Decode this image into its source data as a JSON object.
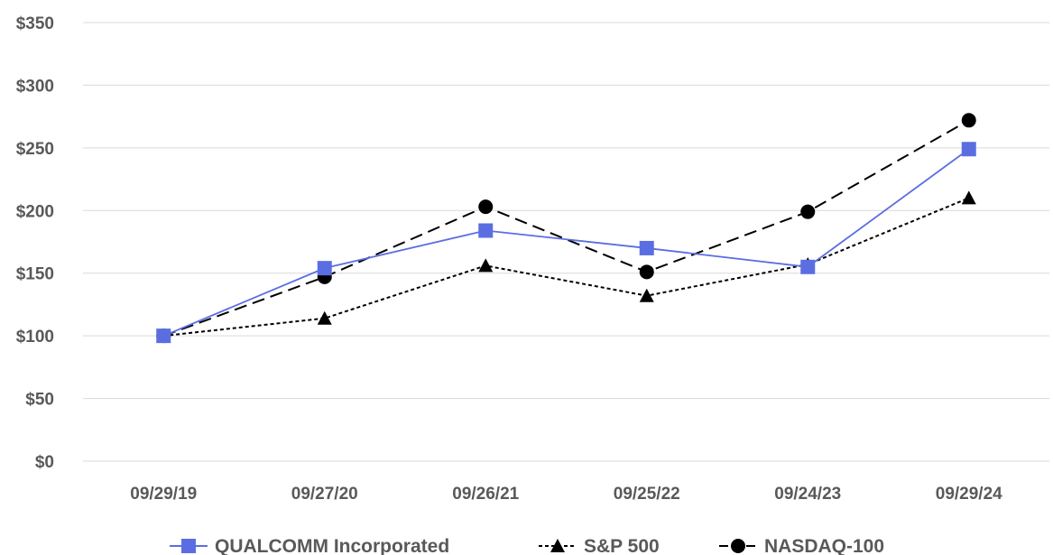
{
  "chart_data": {
    "type": "line",
    "title": "",
    "xlabel": "",
    "ylabel": "",
    "categories": [
      "09/29/19",
      "09/27/20",
      "09/26/21",
      "09/25/22",
      "09/24/23",
      "09/29/24"
    ],
    "ylim": [
      0,
      350
    ],
    "yticks": [
      0,
      50,
      100,
      150,
      200,
      250,
      300,
      350
    ],
    "ytick_labels": [
      "$0",
      "$50",
      "$100",
      "$150",
      "$200",
      "$250",
      "$300",
      "$350"
    ],
    "grid": "horizontal",
    "legend_position": "bottom",
    "series": [
      {
        "name": "QUALCOMM Incorporated",
        "values": [
          100,
          154,
          184,
          170,
          155,
          249
        ],
        "color": "#5b6ee1",
        "marker": "square",
        "line": "solid"
      },
      {
        "name": "S&P 500",
        "values": [
          100,
          114,
          156,
          132,
          157,
          210
        ],
        "color": "#000000",
        "marker": "triangle",
        "line": "dotted"
      },
      {
        "name": "NASDAQ-100",
        "values": [
          100,
          147,
          203,
          151,
          199,
          272
        ],
        "color": "#000000",
        "marker": "circle",
        "line": "dashed"
      }
    ]
  }
}
